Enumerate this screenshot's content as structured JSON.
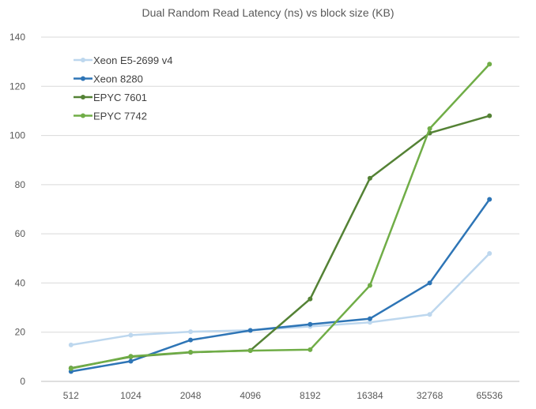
{
  "chart_data": {
    "type": "line",
    "title": "Dual Random Read Latency (ns) vs block size (KB)",
    "xlabel": "",
    "ylabel": "",
    "categories": [
      "512",
      "1024",
      "2048",
      "4096",
      "8192",
      "16384",
      "32768",
      "65536"
    ],
    "ylim": [
      0,
      140
    ],
    "yticks": [
      0,
      20,
      40,
      60,
      80,
      100,
      120,
      140
    ],
    "grid": true,
    "legend_position": "top-left",
    "series": [
      {
        "name": "Xeon E5-2699 v4",
        "color": "#bdd7ee",
        "values": [
          14.8,
          18.8,
          20.2,
          20.8,
          22.3,
          24.0,
          27.2,
          52.0
        ]
      },
      {
        "name": "Xeon 8280",
        "color": "#2e75b6",
        "values": [
          4.0,
          8.2,
          16.8,
          20.7,
          23.2,
          25.5,
          40.0,
          74.0
        ]
      },
      {
        "name": "EPYC 7601",
        "color": "#548235",
        "values": [
          5.4,
          10.0,
          11.8,
          12.6,
          33.5,
          82.6,
          101.0,
          108.0
        ]
      },
      {
        "name": "EPYC 7742",
        "color": "#70ad47",
        "values": [
          5.2,
          10.2,
          11.9,
          12.5,
          12.9,
          39.0,
          102.8,
          129.0
        ]
      }
    ]
  }
}
